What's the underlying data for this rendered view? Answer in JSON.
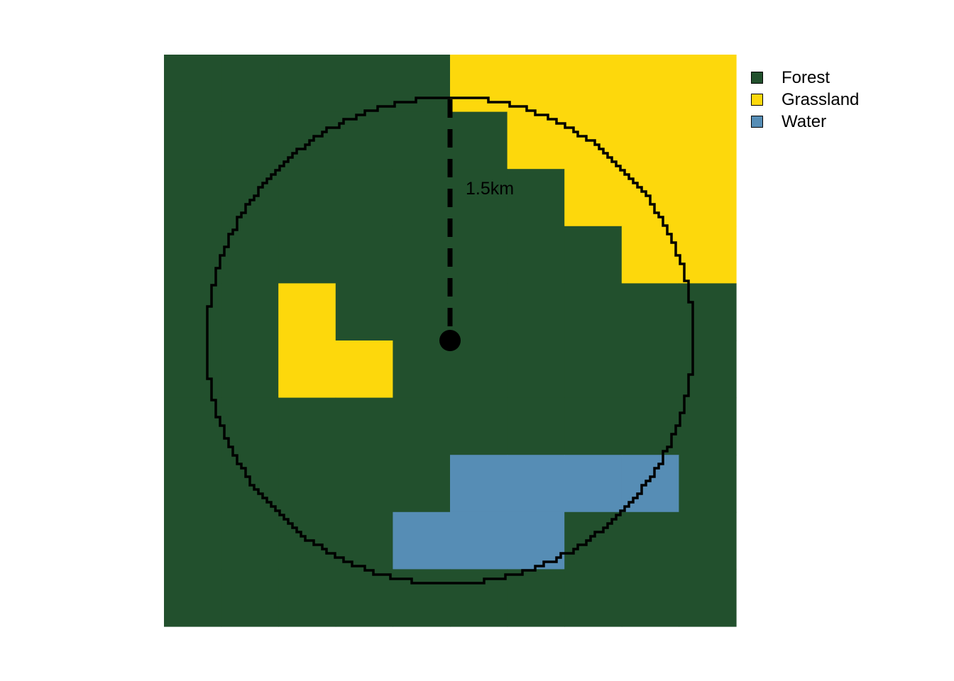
{
  "map": {
    "grid": {
      "cols": 10,
      "rows": 10,
      "cells": [
        "FFFFFGGGGG",
        "FFFFFFGGGG",
        "FFFFFFFGGG",
        "FFFFFFFFGG",
        "FFGFFFFFFF",
        "FFGGFFFFFF",
        "FFFFFFFFFF",
        "FFFFFWWWWF",
        "FFFFWWWFFF",
        "FFFFFFFFFF"
      ]
    },
    "buffer": {
      "center_col": 5,
      "center_row": 5,
      "radius_cells": 4.3,
      "radius_label": "1.5km"
    },
    "classes": {
      "F": {
        "label": "Forest",
        "color": "#22502D"
      },
      "G": {
        "label": "Grassland",
        "color": "#FDD80C"
      },
      "W": {
        "label": "Water",
        "color": "#568DB5"
      }
    }
  },
  "legend": {
    "items": [
      {
        "label": "Forest",
        "color": "#22502D"
      },
      {
        "label": "Grassland",
        "color": "#FDD80C"
      },
      {
        "label": "Water",
        "color": "#568DB5"
      }
    ]
  }
}
